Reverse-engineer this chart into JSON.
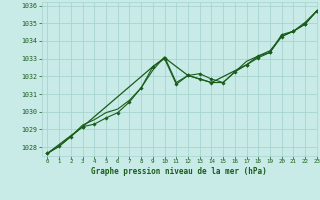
{
  "title": "Graphe pression niveau de la mer (hPa)",
  "bg_color": "#c8ebe8",
  "grid_color": "#a8d4d0",
  "line_color": "#1a5c1a",
  "xlim": [
    -0.5,
    23
  ],
  "ylim": [
    1027.5,
    1036.2
  ],
  "xticks": [
    0,
    1,
    2,
    3,
    4,
    5,
    6,
    7,
    8,
    9,
    10,
    11,
    12,
    13,
    14,
    15,
    16,
    17,
    18,
    19,
    20,
    21,
    22,
    23
  ],
  "yticks": [
    1028,
    1029,
    1030,
    1031,
    1032,
    1033,
    1034,
    1035,
    1036
  ],
  "series1_x": [
    0,
    1,
    2,
    3,
    4,
    5,
    6,
    7,
    8,
    9,
    10,
    11,
    12,
    13,
    14,
    15,
    16,
    17,
    18,
    19,
    20,
    21,
    22,
    23
  ],
  "series1_y": [
    1027.65,
    1028.05,
    1028.6,
    1029.15,
    1029.3,
    1029.65,
    1029.95,
    1030.55,
    1031.35,
    1032.55,
    1033.0,
    1031.55,
    1032.05,
    1032.15,
    1031.85,
    1031.65,
    1032.25,
    1032.65,
    1033.05,
    1033.35,
    1034.25,
    1034.55,
    1034.95,
    1035.7
  ],
  "series2_x": [
    0,
    1,
    2,
    3,
    4,
    5,
    6,
    7,
    8,
    9,
    10,
    11,
    12,
    13,
    14,
    15,
    16,
    17,
    18,
    19,
    20,
    21,
    22,
    23
  ],
  "series2_y": [
    1027.65,
    1028.05,
    1028.6,
    1029.25,
    1029.55,
    1029.95,
    1030.15,
    1030.65,
    1031.35,
    1032.35,
    1033.1,
    1031.65,
    1032.05,
    1031.85,
    1031.65,
    1031.65,
    1032.25,
    1032.85,
    1033.15,
    1033.45,
    1034.25,
    1034.55,
    1035.05,
    1035.7
  ],
  "series3_x": [
    0,
    3,
    9,
    10,
    12,
    13,
    14,
    17,
    18,
    19,
    20,
    21,
    22,
    23
  ],
  "series3_y": [
    1027.65,
    1029.15,
    1032.55,
    1033.05,
    1032.05,
    1031.85,
    1031.65,
    1032.65,
    1033.15,
    1033.35,
    1034.35,
    1034.55,
    1034.95,
    1035.7
  ]
}
